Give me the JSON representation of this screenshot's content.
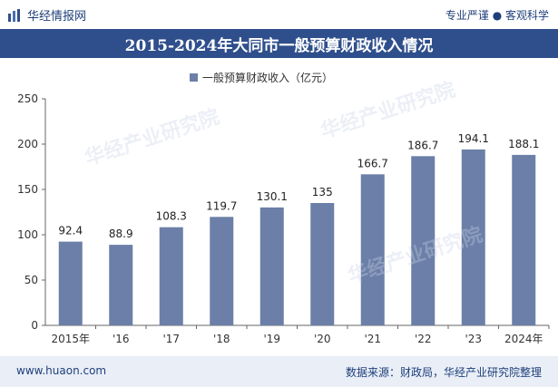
{
  "header": {
    "brand": "华经情报网",
    "tagline": "专业严谨 ● 客观科学"
  },
  "title": "2015-2024年大同市一般预算财政收入情况",
  "footer": {
    "site": "www.huaon.com",
    "source": "数据来源：财政局，华经产业研究院整理"
  },
  "watermarks": [
    "华经产业研究院",
    "www.huaon.com"
  ],
  "colors": {
    "bar": "#6b7fa8",
    "title_bg": "#2f4f8c",
    "footer_bg": "#e9eef7"
  },
  "chart_data": {
    "type": "bar",
    "categories": [
      "2015年",
      "'16",
      "'17",
      "'18",
      "'19",
      "'20",
      "'21",
      "'22",
      "'23",
      "2024年"
    ],
    "series": [
      {
        "name": "一般预算财政收入（亿元）",
        "values": [
          92.4,
          88.9,
          108.3,
          119.7,
          130.1,
          135,
          166.7,
          186.7,
          194.1,
          188.1
        ]
      }
    ],
    "value_labels": [
      "92.4",
      "88.9",
      "108.3",
      "119.7",
      "130.1",
      "135",
      "166.7",
      "186.7",
      "194.1",
      "188.1"
    ],
    "ylim": [
      0,
      250
    ],
    "yticks": [
      0,
      50,
      100,
      150,
      200,
      250
    ],
    "legend": "top-center",
    "grid": false
  }
}
